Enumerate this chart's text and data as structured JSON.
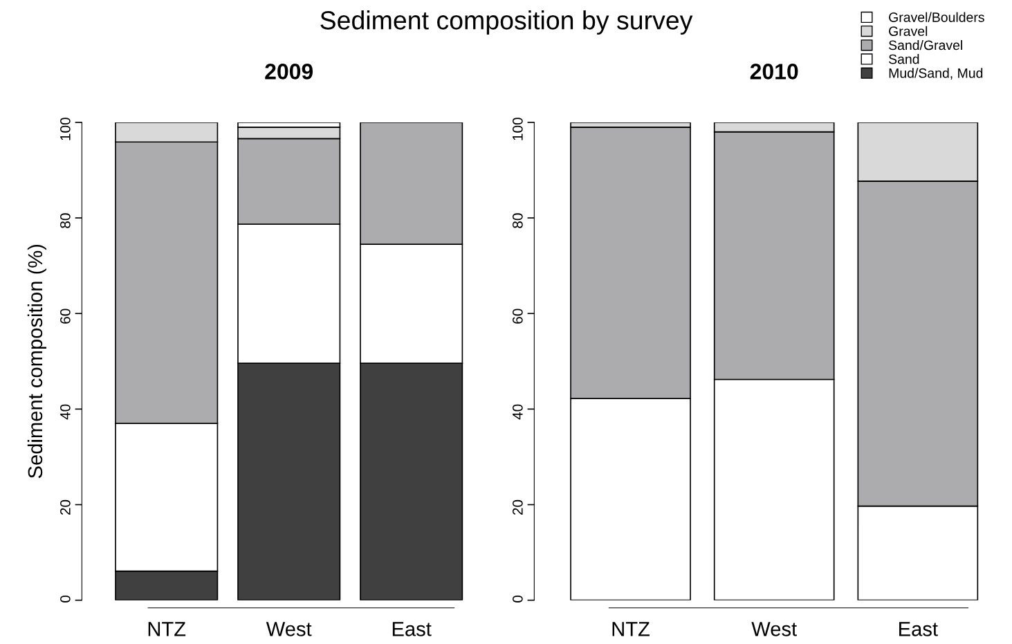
{
  "chart_data": [
    {
      "type": "bar",
      "title": "2009",
      "annotations": [
        "Sediment composition by survey"
      ],
      "ylabel": "Sediment composition (%)",
      "stacked": true,
      "categories": [
        "NTZ",
        "West",
        "East"
      ],
      "ylim": [
        0,
        100
      ],
      "yticks": [
        0,
        20,
        40,
        60,
        80,
        100
      ],
      "grid": false,
      "series": [
        {
          "color": "#404040",
          "values": [
            6.1,
            49.6,
            49.6
          ]
        },
        {
          "color": "#ffffff",
          "values": [
            30.9,
            29.1,
            24.9
          ]
        },
        {
          "color": "#acabad",
          "values": [
            58.9,
            17.9,
            25.5
          ]
        },
        {
          "color": "#d9d9d9",
          "values": [
            4.1,
            2.4,
            null
          ]
        },
        {
          "color": "#ffffff",
          "values": [
            null,
            1.0,
            null
          ]
        }
      ]
    },
    {
      "type": "bar",
      "title": "2010",
      "stacked": true,
      "categories": [
        "NTZ",
        "West",
        "East"
      ],
      "ylim": [
        0,
        100
      ],
      "yticks": [
        0,
        20,
        40,
        60,
        80,
        100
      ],
      "grid": false,
      "legend": "top right",
      "series": [
        {
          "name": "Mud/Sand, Mud",
          "color": "#404040",
          "values": [
            null,
            null,
            null
          ]
        },
        {
          "name": "Sand",
          "color": "#ffffff",
          "values": [
            42.2,
            46.2,
            19.7
          ]
        },
        {
          "name": "Sand/Gravel",
          "color": "#acabad",
          "values": [
            56.8,
            51.8,
            68.0
          ]
        },
        {
          "name": "Gravel",
          "color": "#d9d9d9",
          "values": [
            1.0,
            2.0,
            12.3
          ]
        },
        {
          "name": "Gravel/Boulders",
          "color": "#ffffff",
          "values": [
            null,
            null,
            null
          ]
        }
      ]
    }
  ]
}
